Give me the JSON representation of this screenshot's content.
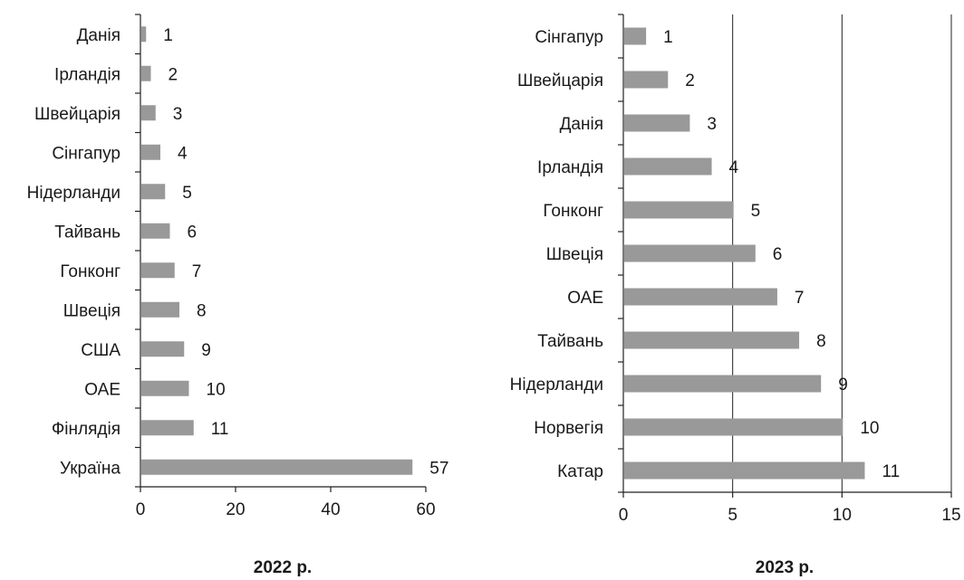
{
  "chart_data": [
    {
      "type": "bar",
      "orientation": "horizontal",
      "caption": "2022 р.",
      "categories": [
        "Данія",
        "Ірландія",
        "Швейцарія",
        "Сінгапур",
        "Нідерланди",
        "Тайвань",
        "Гонконг",
        "Швеція",
        "США",
        "ОАЕ",
        "Фінлядія",
        "Україна"
      ],
      "values": [
        1,
        2,
        3,
        4,
        5,
        6,
        7,
        8,
        9,
        10,
        11,
        57
      ],
      "xlim": [
        0,
        60
      ],
      "xticks": [
        0,
        20,
        40,
        60
      ],
      "grid": false,
      "bar_color": "#999999"
    },
    {
      "type": "bar",
      "orientation": "horizontal",
      "caption": "2023 р.",
      "categories": [
        "Сінгапур",
        "Швейцарія",
        "Данія",
        "Ірландія",
        "Гонконг",
        "Швеція",
        "ОАЕ",
        "Тайвань",
        "Нідерланди",
        "Норвегія",
        "Катар"
      ],
      "values": [
        1,
        2,
        3,
        4,
        5,
        6,
        7,
        8,
        9,
        10,
        11
      ],
      "xlim": [
        0,
        15
      ],
      "xticks": [
        0,
        5,
        10,
        15
      ],
      "grid": true,
      "bar_color": "#999999"
    }
  ]
}
